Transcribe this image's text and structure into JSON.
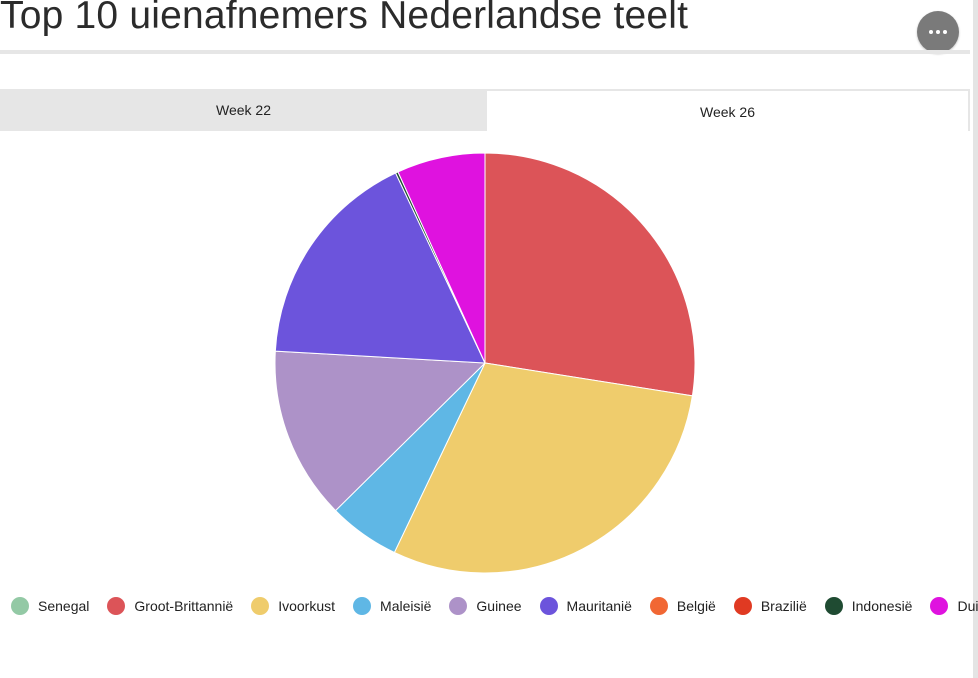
{
  "page": {
    "title": "Top 10 uienafnemers Nederlandse teelt",
    "menu_icon": "more-horizontal-icon"
  },
  "tabs": [
    {
      "label": "Week 22",
      "active": false
    },
    {
      "label": "Week 26",
      "active": true
    }
  ],
  "chart_data": {
    "type": "pie",
    "slices": [
      {
        "label": "Senegal",
        "value": 0,
        "color": "#93c9a5"
      },
      {
        "label": "Groot-Brittannië",
        "value": 27.5,
        "color": "#dc5458"
      },
      {
        "label": "Ivoorkust",
        "value": 29.6,
        "color": "#efcc6c"
      },
      {
        "label": "Maleisië",
        "value": 5.5,
        "color": "#5fb7e5"
      },
      {
        "label": "Guinee",
        "value": 13.3,
        "color": "#ad92c8"
      },
      {
        "label": "Mauritanië",
        "value": 17.1,
        "color": "#6c54dc"
      },
      {
        "label": "België",
        "value": 0,
        "color": "#f16734"
      },
      {
        "label": "Brazilië",
        "value": 0,
        "color": "#e03a22"
      },
      {
        "label": "Indonesië",
        "value": 0.2,
        "color": "#1f4b32"
      },
      {
        "label": "Duitsland",
        "value": 6.8,
        "color": "#df12df"
      }
    ],
    "legend_position": "bottom"
  }
}
